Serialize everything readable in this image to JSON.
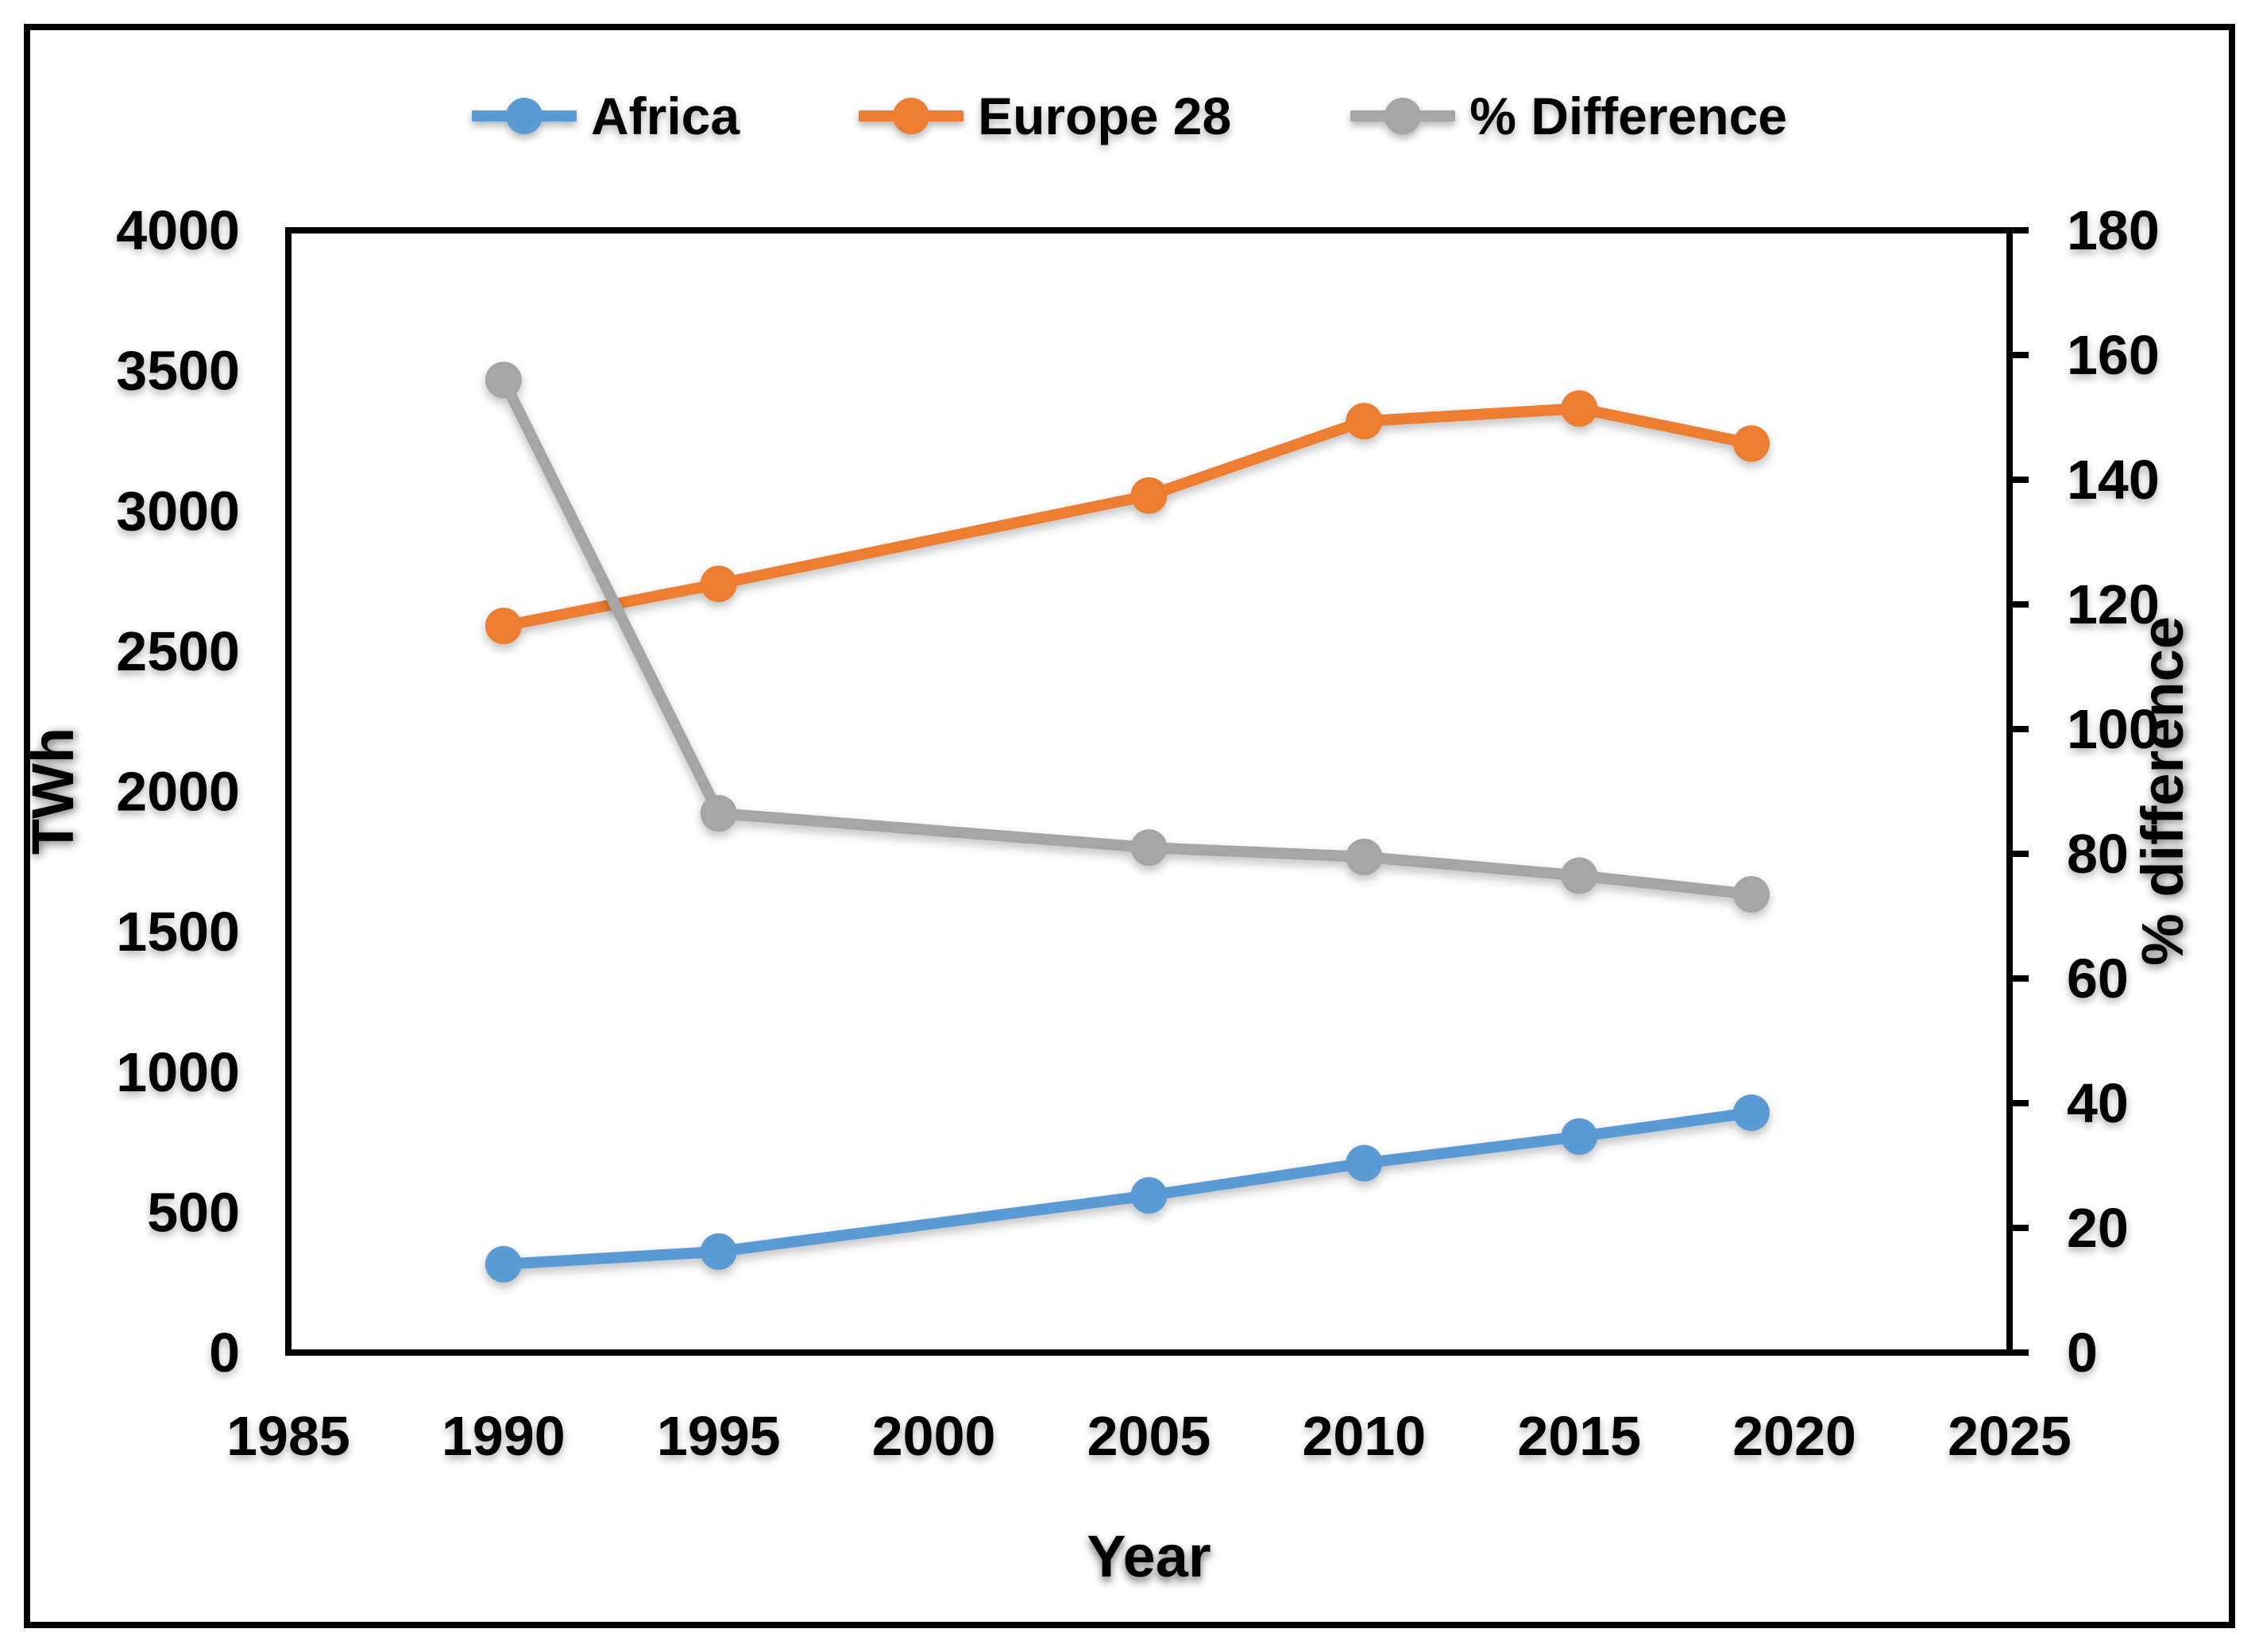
{
  "chart_data": {
    "type": "line",
    "title": "",
    "x": [
      1990,
      1995,
      2005,
      2010,
      2015,
      2019
    ],
    "series": [
      {
        "name": "Africa",
        "axis": "left",
        "color": "#5B9BD5",
        "values": [
          315,
          360,
          560,
          675,
          770,
          855
        ]
      },
      {
        "name": "Europe 28",
        "axis": "left",
        "color": "#ED7D31",
        "values": [
          2590,
          2740,
          3055,
          3320,
          3365,
          3240
        ]
      },
      {
        "name": "% Difference",
        "axis": "right",
        "color": "#A5A5A5",
        "values": [
          156,
          86.5,
          81,
          79.5,
          76.5,
          73.5
        ]
      }
    ],
    "x_axis": {
      "label": "Year",
      "min": 1985,
      "max": 2025,
      "ticks": [
        1985,
        1990,
        1995,
        2000,
        2005,
        2010,
        2015,
        2020,
        2025
      ]
    },
    "y_left": {
      "label": "TWh",
      "min": 0,
      "max": 4000,
      "ticks": [
        0,
        500,
        1000,
        1500,
        2000,
        2500,
        3000,
        3500,
        4000
      ]
    },
    "y_right": {
      "label": "% difference",
      "min": 0,
      "max": 180,
      "ticks": [
        0,
        20,
        40,
        60,
        80,
        100,
        120,
        140,
        160,
        180
      ]
    },
    "legend_position": "top",
    "grid": false,
    "frame_color": "#000000",
    "marker": "circle"
  }
}
